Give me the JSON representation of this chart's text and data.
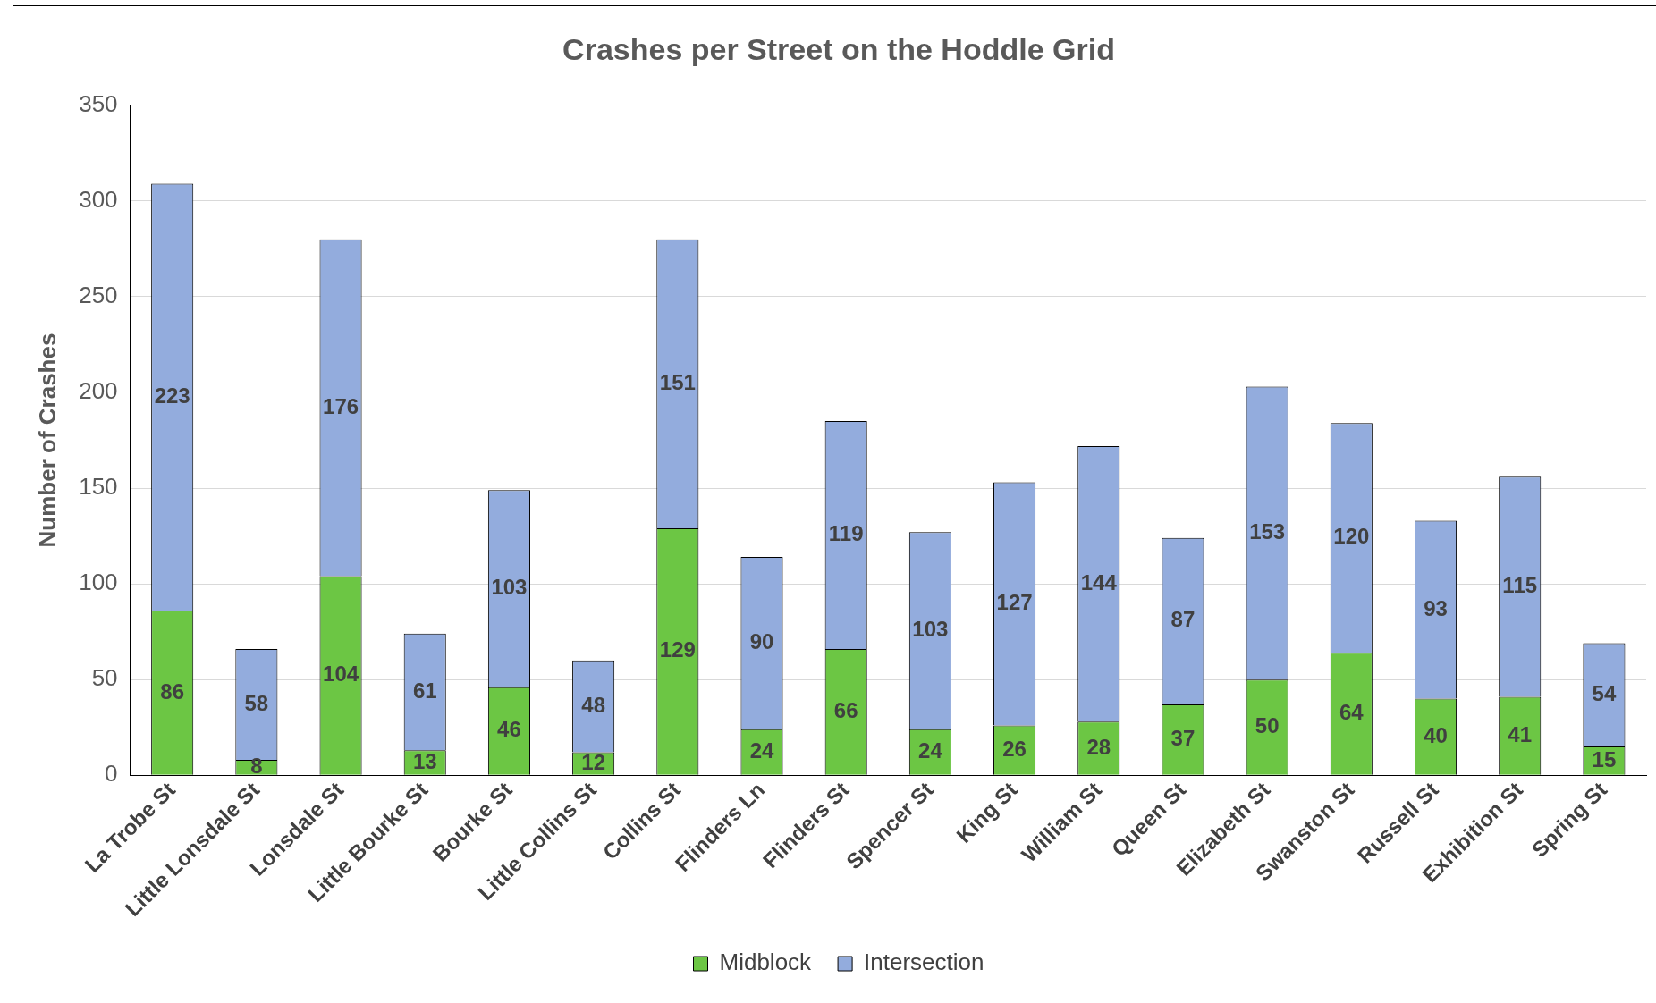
{
  "chart_data": {
    "type": "bar",
    "title": "Crashes per Street on the Hoddle Grid",
    "ylabel": "Number of Crashes",
    "categories": [
      "La Trobe St",
      "Little Lonsdale St",
      "Lonsdale St",
      "Little Bourke St",
      "Bourke St",
      "Little Collins St",
      "Collins St",
      "Flinders Ln",
      "Flinders St",
      "Spencer St",
      "King St",
      "William St",
      "Queen St",
      "Elizabeth St",
      "Swanston St",
      "Russell St",
      "Exhibition St",
      "Spring St"
    ],
    "series": [
      {
        "name": "Midblock",
        "color": "#6cc644",
        "values": [
          86,
          8,
          104,
          13,
          46,
          12,
          129,
          24,
          66,
          24,
          26,
          28,
          37,
          50,
          64,
          40,
          41,
          15
        ]
      },
      {
        "name": "Intersection",
        "color": "#93acdd",
        "values": [
          223,
          58,
          176,
          61,
          103,
          48,
          151,
          90,
          119,
          103,
          127,
          144,
          87,
          153,
          120,
          93,
          115,
          54
        ]
      }
    ],
    "stacked": true,
    "ylim": [
      0,
      350
    ],
    "yticks": [
      0,
      50,
      100,
      150,
      200,
      250,
      300,
      350
    ],
    "grid": "y",
    "legend": "bottom",
    "data_labels": true
  }
}
